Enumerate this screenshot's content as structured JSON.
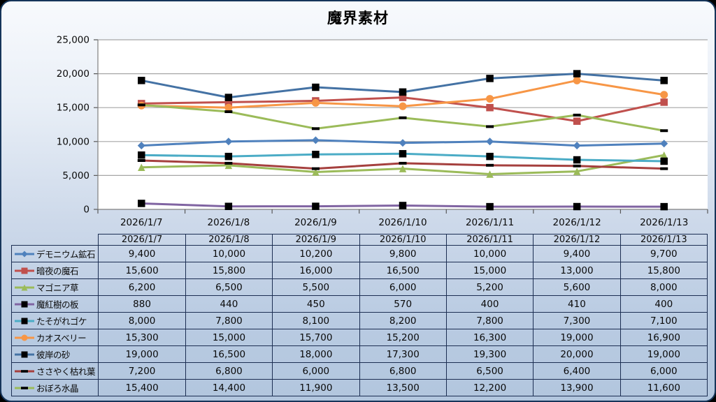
{
  "title": "魔界素材",
  "chart_data": {
    "type": "line",
    "title": "魔界素材",
    "x": [
      "2026/1/7",
      "2026/1/8",
      "2026/1/9",
      "2026/1/10",
      "2026/1/11",
      "2026/1/12",
      "2026/1/13"
    ],
    "ylim": [
      0,
      25000
    ],
    "ytick_interval": 5000,
    "ytick_labels": [
      "0",
      "5,000",
      "10,000",
      "15,000",
      "20,000",
      "25,000"
    ],
    "grid": true,
    "legend_position": "data-table-left-column",
    "plot_bg": "#ffffff",
    "gridline_color": "#a6a6a6",
    "axis_color": "#7f7f7f",
    "series": [
      {
        "name": "デモニウム鉱石",
        "color": "#4F81BD",
        "marker": "diamond",
        "marker_fill": "#4F81BD",
        "values": [
          9400,
          10000,
          10200,
          9800,
          10000,
          9400,
          9700
        ]
      },
      {
        "name": "暗夜の魔石",
        "color": "#C0504D",
        "marker": "square",
        "marker_fill": "#C0504D",
        "values": [
          15600,
          15800,
          16000,
          16500,
          15000,
          13000,
          15800
        ]
      },
      {
        "name": "マゴニア草",
        "color": "#9BBB59",
        "marker": "triangle",
        "marker_fill": "#9BBB59",
        "values": [
          6200,
          6500,
          5500,
          6000,
          5200,
          5600,
          8000
        ]
      },
      {
        "name": "魔紅樹の板",
        "color": "#8064A2",
        "marker": "square",
        "marker_fill": "#000000",
        "values": [
          880,
          440,
          450,
          570,
          400,
          410,
          400
        ]
      },
      {
        "name": "たそがれゴケ",
        "color": "#4BACC6",
        "marker": "square",
        "marker_fill": "#000000",
        "values": [
          8000,
          7800,
          8100,
          8200,
          7800,
          7300,
          7100
        ]
      },
      {
        "name": "カオスベリー",
        "color": "#F79646",
        "marker": "circle",
        "marker_fill": "#F79646",
        "values": [
          15300,
          15000,
          15700,
          15200,
          16300,
          19000,
          16900
        ]
      },
      {
        "name": "彼岸の砂",
        "color": "#4472A4",
        "marker": "square",
        "marker_fill": "#000000",
        "values": [
          19000,
          16500,
          18000,
          17300,
          19300,
          20000,
          19000
        ]
      },
      {
        "name": "ささやく枯れ葉",
        "color": "#A5403E",
        "marker": "dash",
        "marker_fill": "#000000",
        "values": [
          7200,
          6800,
          6000,
          6800,
          6500,
          6400,
          6000
        ]
      },
      {
        "name": "おぼろ水晶",
        "color": "#9BBB59",
        "marker": "dash",
        "marker_fill": "#000000",
        "values": [
          15400,
          14400,
          11900,
          13500,
          12200,
          13900,
          11600
        ]
      }
    ]
  },
  "table": {
    "columns": [
      "2026/1/7",
      "2026/1/8",
      "2026/1/9",
      "2026/1/10",
      "2026/1/11",
      "2026/1/12",
      "2026/1/13"
    ],
    "rows": [
      {
        "label": "デモニウム鉱石",
        "values": [
          "9,400",
          "10,000",
          "10,200",
          "9,800",
          "10,000",
          "9,400",
          "9,700"
        ]
      },
      {
        "label": "暗夜の魔石",
        "values": [
          "15,600",
          "15,800",
          "16,000",
          "16,500",
          "15,000",
          "13,000",
          "15,800"
        ]
      },
      {
        "label": "マゴニア草",
        "values": [
          "6,200",
          "6,500",
          "5,500",
          "6,000",
          "5,200",
          "5,600",
          "8,000"
        ]
      },
      {
        "label": "魔紅樹の板",
        "values": [
          "880",
          "440",
          "450",
          "570",
          "400",
          "410",
          "400"
        ]
      },
      {
        "label": "たそがれゴケ",
        "values": [
          "8,000",
          "7,800",
          "8,100",
          "8,200",
          "7,800",
          "7,300",
          "7,100"
        ]
      },
      {
        "label": "カオスベリー",
        "values": [
          "15,300",
          "15,000",
          "15,700",
          "15,200",
          "16,300",
          "19,000",
          "16,900"
        ]
      },
      {
        "label": "彼岸の砂",
        "values": [
          "19,000",
          "16,500",
          "18,000",
          "17,300",
          "19,300",
          "20,000",
          "19,000"
        ]
      },
      {
        "label": "ささやく枯れ葉",
        "values": [
          "7,200",
          "6,800",
          "6,000",
          "6,800",
          "6,500",
          "6,400",
          "6,000"
        ]
      },
      {
        "label": "おぼろ水晶",
        "values": [
          "15,400",
          "14,400",
          "11,900",
          "13,500",
          "12,200",
          "13,900",
          "11,600"
        ]
      }
    ]
  }
}
